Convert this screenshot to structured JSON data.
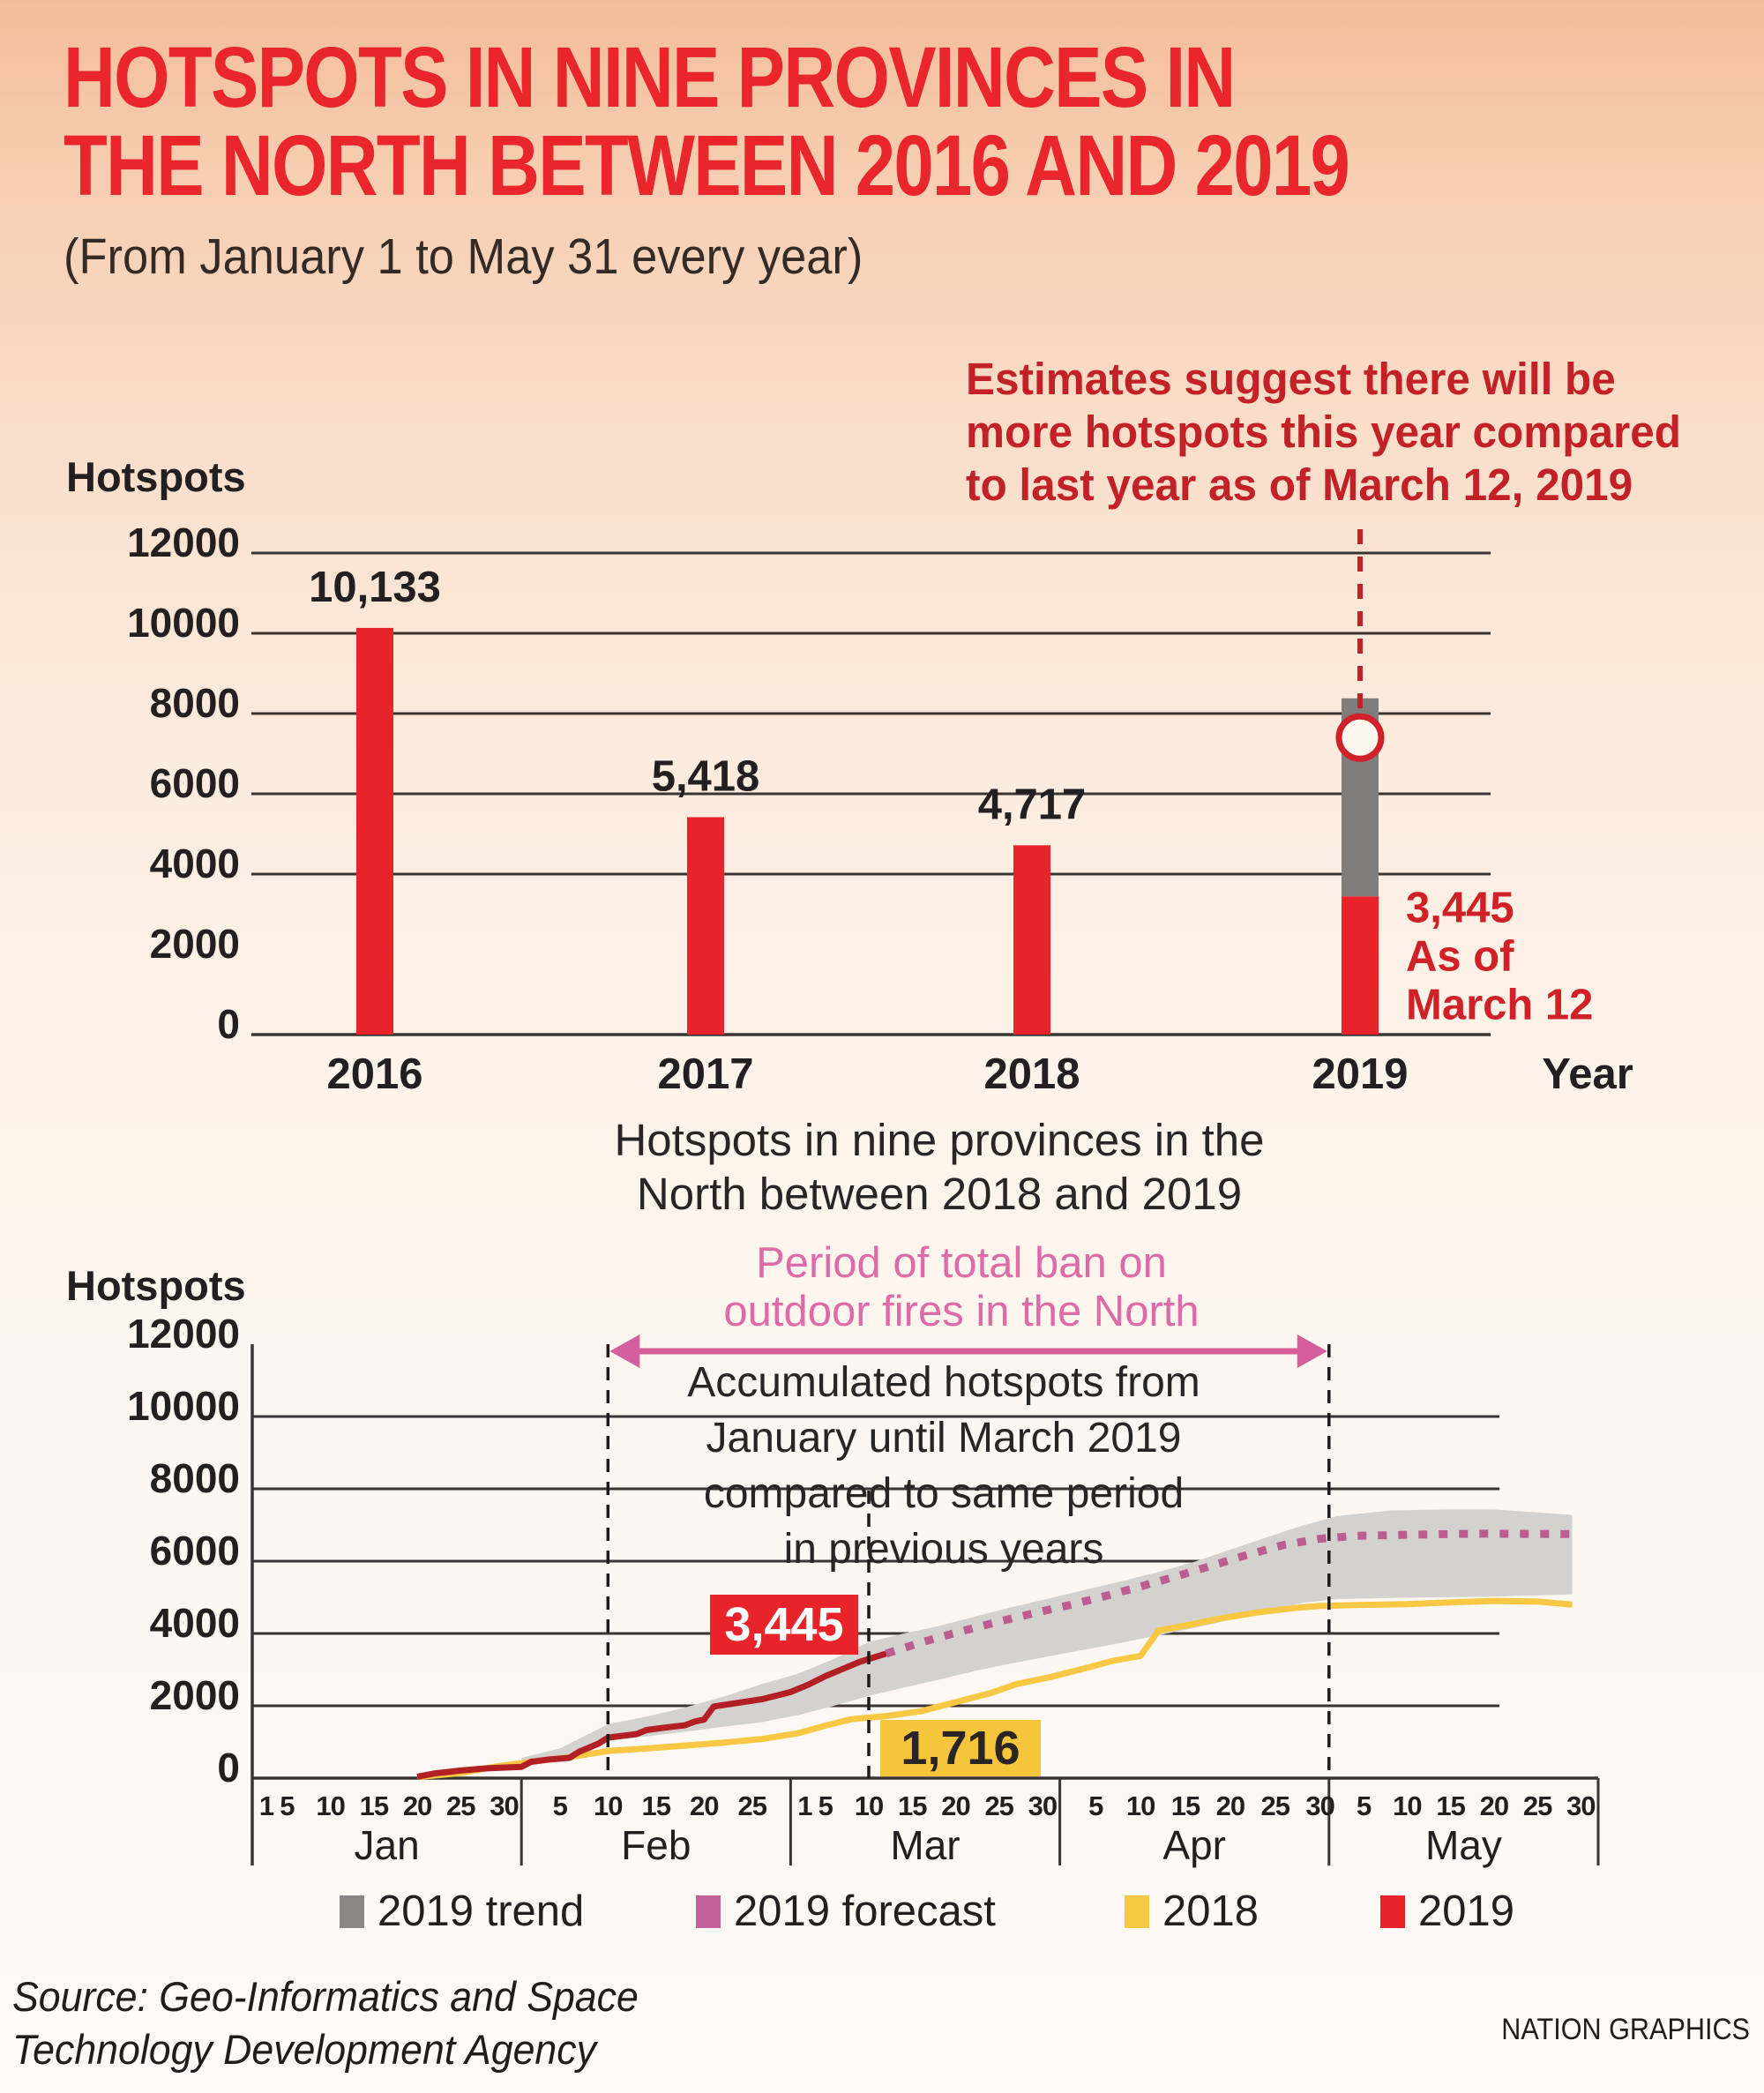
{
  "title": {
    "line1": "HOTSPOTS IN NINE PROVINCES IN",
    "line2": "THE NORTH BETWEEN 2016 AND 2019",
    "subtitle": "(From January 1 to May 31 every year)"
  },
  "annotation": {
    "line1": "Estimates suggest there will be",
    "line2": "more hotspots this year compared",
    "line3": "to last year as of March 12, 2019"
  },
  "colors": {
    "title_red": "#e8262b",
    "bar_red": "#e8232a",
    "dark_red_line": "#b22025",
    "annotation_red": "#c22127",
    "asof_red": "#cf2127",
    "gray_bar": "#7f7d7b",
    "band_gray": "#d3d2ce",
    "forecast_pink": "#bb5d90",
    "ban_pink": "#df6ba6",
    "arrow_pink": "#d55f9d",
    "yellow": "#f8c845",
    "yellow_box": "#f5c53c",
    "grid": "#3a3433",
    "dashed_black": "#1d1a19",
    "circle_fill": "#fdf7f0"
  },
  "chart_data": [
    {
      "type": "bar",
      "title": "Hotspots in nine provinces in the North between 2016 and 2019",
      "ylabel": "Hotspots",
      "xlabel": "Year",
      "ylim": [
        0,
        12000
      ],
      "yticks": [
        12000,
        10000,
        8000,
        6000,
        4000,
        2000,
        0
      ],
      "grid_values": [
        12000,
        10000,
        8000,
        6000,
        4000,
        0
      ],
      "categories": [
        "2016",
        "2017",
        "2018",
        "2019"
      ],
      "values": [
        10133,
        5418,
        4717,
        3445
      ],
      "value_labels": [
        "10,133",
        "5,418",
        "4,717",
        ""
      ],
      "bar_2019": {
        "actual": 3445,
        "label": [
          "3,445",
          "As of",
          "March 12"
        ],
        "trend_top": 8380,
        "forecast_marker": 7400
      }
    },
    {
      "type": "line",
      "title_lines": [
        "Hotspots in nine provinces in the",
        "North between 2018 and 2019"
      ],
      "ylabel": "Hotspots",
      "ylim": [
        0,
        12000
      ],
      "yticks": [
        12000,
        10000,
        8000,
        6000,
        4000,
        2000,
        0
      ],
      "grid_values": [
        10000,
        8000,
        6000,
        4000,
        2000
      ],
      "months": [
        {
          "name": "Jan",
          "days": 31,
          "ticks": [
            1,
            5,
            10,
            15,
            20,
            25,
            30
          ]
        },
        {
          "name": "Feb",
          "days": 28,
          "ticks": [
            5,
            10,
            15,
            20,
            25
          ]
        },
        {
          "name": "Mar",
          "days": 31,
          "ticks": [
            1,
            5,
            10,
            15,
            20,
            25,
            30
          ]
        },
        {
          "name": "Apr",
          "days": 30,
          "ticks": [
            5,
            10,
            15,
            20,
            25,
            30
          ]
        },
        {
          "name": "May",
          "days": 31,
          "ticks": [
            5,
            10,
            15,
            20,
            25,
            30
          ]
        }
      ],
      "ban_period": {
        "label_line1": "Period of total ban on",
        "label_line2": "outdoor fires in the North",
        "start": "Feb 10",
        "end": "May 1"
      },
      "asof_line": "Mar 10",
      "note": [
        "Accumulated hotspots from",
        "January until March 2019",
        "compared to same period",
        "in previous years"
      ],
      "series": [
        {
          "name": "2019 trend",
          "type": "band",
          "color": "#d3d2ce",
          "upper": [
            [
              "Feb 1",
              560
            ],
            [
              "Feb 5",
              820
            ],
            [
              "Feb 10",
              1490
            ],
            [
              "Feb 14",
              1700
            ],
            [
              "Feb 18",
              1950
            ],
            [
              "Feb 22",
              2250
            ],
            [
              "Feb 26",
              2600
            ],
            [
              "Mar 2",
              2900
            ],
            [
              "Mar 6",
              3300
            ],
            [
              "Mar 10",
              3760
            ],
            [
              "Mar 14",
              4000
            ],
            [
              "Mar 18",
              4200
            ],
            [
              "Mar 22",
              4450
            ],
            [
              "Mar 26",
              4700
            ],
            [
              "Mar 31",
              4980
            ],
            [
              "Apr 4",
              5220
            ],
            [
              "Apr 8",
              5450
            ],
            [
              "Apr 12",
              5700
            ],
            [
              "Apr 16",
              5980
            ],
            [
              "Apr 20",
              6320
            ],
            [
              "Apr 24",
              6650
            ],
            [
              "Apr 28",
              6980
            ],
            [
              "May 2",
              7250
            ],
            [
              "May 8",
              7400
            ],
            [
              "May 14",
              7430
            ],
            [
              "May 20",
              7430
            ],
            [
              "May 29",
              7280
            ]
          ],
          "lower": [
            [
              "Feb 1",
              340
            ],
            [
              "Feb 5",
              540
            ],
            [
              "Feb 10",
              1050
            ],
            [
              "Feb 14",
              1150
            ],
            [
              "Feb 18",
              1280
            ],
            [
              "Feb 22",
              1420
            ],
            [
              "Feb 26",
              1550
            ],
            [
              "Mar 2",
              1750
            ],
            [
              "Mar 6",
              2000
            ],
            [
              "Mar 10",
              2270
            ],
            [
              "Mar 14",
              2500
            ],
            [
              "Mar 18",
              2720
            ],
            [
              "Mar 22",
              2950
            ],
            [
              "Mar 26",
              3150
            ],
            [
              "Mar 31",
              3380
            ],
            [
              "Apr 4",
              3560
            ],
            [
              "Apr 8",
              3750
            ],
            [
              "Apr 12",
              3950
            ],
            [
              "Apr 16",
              4150
            ],
            [
              "Apr 20",
              4380
            ],
            [
              "Apr 24",
              4620
            ],
            [
              "Apr 28",
              4850
            ],
            [
              "May 2",
              4950
            ],
            [
              "May 8",
              4980
            ],
            [
              "May 14",
              5000
            ],
            [
              "May 20",
              5020
            ],
            [
              "May 29",
              5080
            ]
          ]
        },
        {
          "name": "2019 forecast",
          "type": "dashed",
          "color": "#bb5d90",
          "points": [
            [
              "Mar 12",
              3445
            ],
            [
              "Mar 16",
              3750
            ],
            [
              "Mar 20",
              4020
            ],
            [
              "Mar 25",
              4330
            ],
            [
              "Mar 29",
              4560
            ],
            [
              "Apr 2",
              4780
            ],
            [
              "Apr 6",
              5030
            ],
            [
              "Apr 10",
              5300
            ],
            [
              "Apr 14",
              5580
            ],
            [
              "Apr 18",
              5880
            ],
            [
              "Apr 22",
              6180
            ],
            [
              "Apr 26",
              6450
            ],
            [
              "Apr 30",
              6620
            ],
            [
              "May 4",
              6700
            ],
            [
              "May 10",
              6730
            ],
            [
              "May 18",
              6760
            ],
            [
              "May 29",
              6750
            ]
          ]
        },
        {
          "name": "2018",
          "type": "line",
          "color": "#f8c845",
          "points": [
            [
              "Jan 20",
              30
            ],
            [
              "Jan 25",
              140
            ],
            [
              "Jan 29",
              320
            ],
            [
              "Feb 2",
              450
            ],
            [
              "Feb 6",
              580
            ],
            [
              "Feb 10",
              750
            ],
            [
              "Feb 14",
              820
            ],
            [
              "Feb 18",
              900
            ],
            [
              "Feb 22",
              980
            ],
            [
              "Feb 26",
              1080
            ],
            [
              "Mar 2",
              1250
            ],
            [
              "Mar 5",
              1450
            ],
            [
              "Mar 8",
              1630
            ],
            [
              "Mar 12",
              1716
            ],
            [
              "Mar 16",
              1850
            ],
            [
              "Mar 20",
              2100
            ],
            [
              "Mar 24",
              2350
            ],
            [
              "Mar 27",
              2600
            ],
            [
              "Mar 31",
              2800
            ],
            [
              "Apr 4",
              3050
            ],
            [
              "Apr 7",
              3250
            ],
            [
              "Apr 10",
              3380
            ],
            [
              "Apr 12",
              4080
            ],
            [
              "Apr 15",
              4220
            ],
            [
              "Apr 19",
              4420
            ],
            [
              "Apr 23",
              4580
            ],
            [
              "Apr 27",
              4700
            ],
            [
              "Apr 30",
              4760
            ],
            [
              "May 5",
              4790
            ],
            [
              "May 10",
              4810
            ],
            [
              "May 15",
              4860
            ],
            [
              "May 20",
              4900
            ],
            [
              "May 25",
              4880
            ],
            [
              "May 29",
              4800
            ]
          ]
        },
        {
          "name": "2019",
          "type": "line",
          "color": "#b22025",
          "points": [
            [
              "Jan 20",
              40
            ],
            [
              "Jan 22",
              130
            ],
            [
              "Jan 25",
              210
            ],
            [
              "Jan 28",
              270
            ],
            [
              "Feb 1",
              310
            ],
            [
              "Feb 2",
              450
            ],
            [
              "Feb 4",
              520
            ],
            [
              "Feb 6",
              560
            ],
            [
              "Feb 7",
              730
            ],
            [
              "Feb 9",
              950
            ],
            [
              "Feb 10",
              1120
            ],
            [
              "Feb 13",
              1220
            ],
            [
              "Feb 14",
              1330
            ],
            [
              "Feb 16",
              1400
            ],
            [
              "Feb 18",
              1460
            ],
            [
              "Feb 19",
              1560
            ],
            [
              "Feb 20",
              1620
            ],
            [
              "Feb 21",
              1980
            ],
            [
              "Feb 23",
              2060
            ],
            [
              "Feb 26",
              2180
            ],
            [
              "Mar 1",
              2380
            ],
            [
              "Mar 3",
              2580
            ],
            [
              "Mar 5",
              2820
            ],
            [
              "Mar 7",
              3020
            ],
            [
              "Mar 9",
              3220
            ],
            [
              "Mar 12",
              3445
            ]
          ],
          "end_label": {
            "text": "3,445",
            "bg": "#e8232a",
            "fg": "#ffffff"
          }
        }
      ],
      "label_2018": {
        "text": "1,716",
        "bg": "#f5c53c",
        "fg": "#2a2424"
      },
      "legend": [
        {
          "label": "2019 trend",
          "color": "#8a8886"
        },
        {
          "label": "2019 forecast",
          "color": "#c4619b"
        },
        {
          "label": "2018",
          "color": "#f7c843"
        },
        {
          "label": "2019",
          "color": "#e8232a"
        }
      ],
      "legend_position": "bottom"
    }
  ],
  "footer": {
    "source_line1": "Source: Geo-Informatics and Space",
    "source_line2": "Technology Development Agency",
    "credit": "NATION GRAPHICS"
  }
}
